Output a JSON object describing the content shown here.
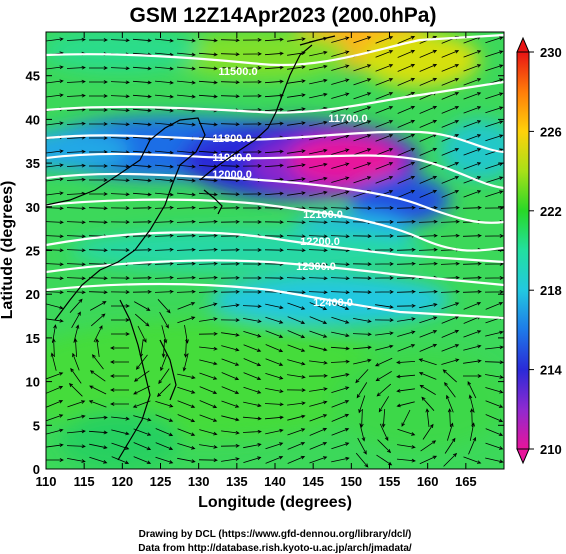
{
  "title": "GSM 12Z14Apr2023 (200.0hPa)",
  "x_axis": {
    "label": "Longitude (degrees)",
    "range": [
      110,
      170
    ],
    "ticks": [
      110,
      115,
      120,
      125,
      130,
      135,
      140,
      145,
      150,
      155,
      160,
      165
    ]
  },
  "y_axis": {
    "label": "Latitude  (degrees)",
    "range": [
      0,
      50
    ],
    "ticks": [
      0,
      5,
      10,
      15,
      20,
      25,
      30,
      35,
      40,
      45
    ]
  },
  "colorbar": {
    "range": [
      210,
      230
    ],
    "ticks": [
      210,
      214,
      218,
      222,
      226,
      230
    ],
    "colors": [
      "#e8149b",
      "#8f2ad0",
      "#2a2ad8",
      "#1e7ae8",
      "#22c8e0",
      "#22e0a0",
      "#28d828",
      "#a8e018",
      "#ffd20a",
      "#ff7d0a",
      "#e81414"
    ]
  },
  "contours": [
    {
      "label": "11500.0"
    },
    {
      "label": "11700.0"
    },
    {
      "label": "11800.0"
    },
    {
      "label": "11900.0"
    },
    {
      "label": "12000.0"
    },
    {
      "label": "12100.0"
    },
    {
      "label": "12200.0"
    },
    {
      "label": "12300.0"
    },
    {
      "label": "12400.0"
    }
  ],
  "credits": {
    "line1": "Drawing by DCL (https://www.gfd-dennou.org/library/dcl/)",
    "line2": "Data from http://database.rish.kyoto-u.ac.jp/arch/jmadata/"
  }
}
